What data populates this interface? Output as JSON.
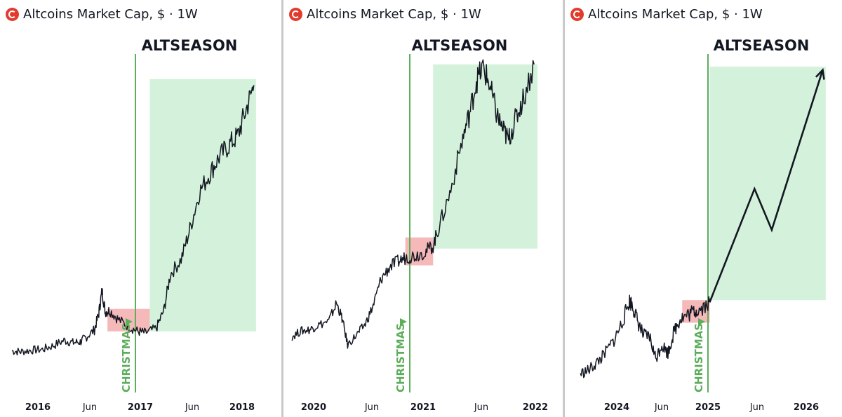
{
  "panels": [
    {
      "title": "Altcoins Market Cap, $ · 1W"
    },
    {
      "title": "Altcoins Market Cap, $ · 1W"
    },
    {
      "title": "Altcoins Market Cap, $ · 1W"
    }
  ],
  "colors": {
    "zone": "#d4f2db",
    "accumulation": "#f6b9b9",
    "line": "#5cad5c",
    "price": "#131722",
    "axis_text": "#131722"
  },
  "chart_data": [
    {
      "type": "line",
      "title": "Altcoins Market Cap, $ · 1W",
      "altseason_label": "ALTSEASON",
      "marker_label": "CHRISTMAS",
      "x_ticks": [
        "2016",
        "Jun",
        "2017",
        "Jun",
        "2018"
      ],
      "series": [
        {
          "values": [
            [
              2015.72,
              0.9
            ],
            [
              2015.8,
              0.85
            ],
            [
              2015.9,
              0.95
            ],
            [
              2016.0,
              1.0
            ],
            [
              2016.1,
              1.25
            ],
            [
              2016.2,
              1.6
            ],
            [
              2016.28,
              1.45
            ],
            [
              2016.35,
              1.5
            ],
            [
              2016.4,
              1.8
            ],
            [
              2016.48,
              2.3
            ],
            [
              2016.52,
              3.4
            ],
            [
              2016.55,
              4.9
            ],
            [
              2016.58,
              3.5
            ],
            [
              2016.62,
              3.6
            ],
            [
              2016.7,
              3.0
            ],
            [
              2016.8,
              2.5
            ],
            [
              2016.88,
              2.2
            ],
            [
              2016.95,
              2.1
            ],
            [
              2017.05,
              2.4
            ],
            [
              2017.12,
              3.6
            ],
            [
              2017.18,
              6.0
            ],
            [
              2017.28,
              7.0
            ],
            [
              2017.36,
              9.0
            ],
            [
              2017.45,
              11.5
            ],
            [
              2017.55,
              12.8
            ],
            [
              2017.63,
              13.8
            ],
            [
              2017.72,
              14.6
            ],
            [
              2017.8,
              15.2
            ],
            [
              2017.88,
              17.0
            ],
            [
              2017.95,
              18.6
            ]
          ]
        }
      ],
      "accumulation_zone": {
        "x": [
          2016.6,
          2016.99
        ],
        "y": [
          2.2,
          3.7
        ]
      },
      "altseason_zone": {
        "x": [
          2016.99,
          2017.97
        ],
        "y": [
          2.2,
          19.0
        ]
      }
    },
    {
      "type": "line",
      "title": "Altcoins Market Cap, $ · 1W",
      "altseason_label": "ALTSEASON",
      "marker_label": "CHRISTMAS",
      "x_ticks": [
        "2020",
        "Jun",
        "2021",
        "Jun",
        "2022"
      ],
      "series": [
        {
          "values": [
            [
              2019.72,
              1.5
            ],
            [
              2019.8,
              1.9
            ],
            [
              2019.88,
              2.0
            ],
            [
              2019.95,
              2.3
            ],
            [
              2020.05,
              2.6
            ],
            [
              2020.12,
              3.9
            ],
            [
              2020.17,
              2.8
            ],
            [
              2020.22,
              0.9
            ],
            [
              2020.3,
              1.6
            ],
            [
              2020.38,
              2.4
            ],
            [
              2020.45,
              3.7
            ],
            [
              2020.52,
              5.6
            ],
            [
              2020.6,
              6.5
            ],
            [
              2020.68,
              6.9
            ],
            [
              2020.75,
              7.2
            ],
            [
              2020.83,
              7.3
            ],
            [
              2020.92,
              7.6
            ],
            [
              2020.99,
              8.0
            ],
            [
              2021.05,
              9.5
            ],
            [
              2021.15,
              12.0
            ],
            [
              2021.25,
              15.5
            ],
            [
              2021.32,
              17.5
            ],
            [
              2021.38,
              19.8
            ],
            [
              2021.44,
              20.8
            ],
            [
              2021.5,
              19.5
            ],
            [
              2021.56,
              17.5
            ],
            [
              2021.62,
              16.3
            ],
            [
              2021.67,
              15.6
            ],
            [
              2021.73,
              17.0
            ],
            [
              2021.8,
              18.5
            ],
            [
              2021.9,
              21.0
            ]
          ]
        }
      ],
      "accumulation_zone": {
        "x": [
          2020.74,
          2020.99
        ],
        "y": [
          6.6,
          8.6
        ]
      },
      "altseason_zone": {
        "x": [
          2020.99,
          2021.93
        ],
        "y": [
          7.8,
          21.0
        ]
      }
    },
    {
      "type": "line",
      "title": "Altcoins Market Cap, $ · 1W",
      "altseason_label": "ALTSEASON",
      "marker_label": "CHRISTMAS",
      "x_ticks": [
        "2024",
        "Jun",
        "2025",
        "Jun",
        "2026"
      ],
      "series": [
        {
          "values": [
            [
              2023.72,
              0.55
            ],
            [
              2023.8,
              0.7
            ],
            [
              2023.88,
              1.05
            ],
            [
              2023.95,
              1.4
            ],
            [
              2024.05,
              2.1
            ],
            [
              2024.13,
              2.9
            ],
            [
              2024.2,
              3.9
            ],
            [
              2024.23,
              3.75
            ],
            [
              2024.28,
              3.0
            ],
            [
              2024.34,
              2.3
            ],
            [
              2024.4,
              2.25
            ],
            [
              2024.46,
              1.25
            ],
            [
              2024.52,
              1.9
            ],
            [
              2024.58,
              1.5
            ],
            [
              2024.64,
              2.5
            ],
            [
              2024.7,
              3.1
            ],
            [
              2024.77,
              3.25
            ],
            [
              2024.84,
              3.45
            ],
            [
              2024.9,
              3.55
            ],
            [
              2024.99,
              3.85
            ]
          ]
        },
        {
          "values": [
            [
              2024.99,
              3.85
            ],
            [
              2025.43,
              9.1
            ],
            [
              2025.6,
              7.2
            ],
            [
              2026.1,
              14.6
            ]
          ]
        }
      ],
      "accumulation_zone": {
        "x": [
          2024.72,
          2024.99
        ],
        "y": [
          2.9,
          3.95
        ]
      },
      "altseason_zone": {
        "x": [
          2024.99,
          2026.13
        ],
        "y": [
          3.95,
          14.75
        ]
      }
    }
  ]
}
